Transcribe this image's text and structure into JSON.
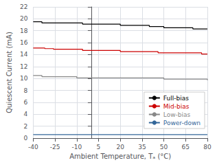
{
  "chart_data": {
    "type": "line",
    "line_style": "step",
    "xlabel": "Ambient Temperature, Tₐ (°C)",
    "ylabel": "Quiescent Current (mA)",
    "xlim": [
      -40,
      80
    ],
    "ylim": [
      0,
      22
    ],
    "xticks": [
      -40,
      -25,
      -10,
      5,
      20,
      35,
      50,
      65,
      80
    ],
    "yticks": [
      0,
      2,
      4,
      6,
      8,
      10,
      12,
      14,
      16,
      18,
      20,
      22
    ],
    "grid": true,
    "legend": "lower right",
    "x": [
      -40,
      -38,
      -36,
      -34,
      -32,
      -30,
      -28,
      -26,
      -24,
      -22,
      -20,
      -18,
      -16,
      -14,
      -12,
      -10,
      -8,
      -6,
      -4,
      -2,
      0,
      2,
      4,
      6,
      8,
      10,
      12,
      14,
      16,
      18,
      20,
      22,
      24,
      26,
      28,
      30,
      32,
      34,
      36,
      38,
      40,
      42,
      44,
      46,
      48,
      50,
      52,
      54,
      56,
      58,
      60,
      62,
      64,
      66,
      68,
      70,
      72,
      74,
      76,
      78,
      80
    ],
    "series": [
      {
        "name": "Full-bias",
        "color": "#000000",
        "values": [
          19.5,
          19.5,
          19.5,
          19.3,
          19.3,
          19.3,
          19.3,
          19.3,
          19.3,
          19.3,
          19.3,
          19.3,
          19.3,
          19.3,
          19.3,
          19.3,
          19.3,
          19.1,
          19.1,
          19.1,
          19.1,
          19.1,
          19.1,
          19.1,
          19.1,
          19.1,
          19.1,
          19.1,
          19.1,
          19.1,
          18.9,
          18.9,
          18.9,
          18.9,
          18.9,
          18.9,
          18.9,
          18.9,
          18.9,
          18.9,
          18.7,
          18.7,
          18.7,
          18.7,
          18.7,
          18.5,
          18.5,
          18.5,
          18.5,
          18.5,
          18.5,
          18.5,
          18.5,
          18.5,
          18.5,
          18.3,
          18.3,
          18.3,
          18.3,
          18.3,
          18.3
        ]
      },
      {
        "name": "Mid-bias",
        "color": "#cc0000",
        "values": [
          15.1,
          15.1,
          15.1,
          15.1,
          15.0,
          15.0,
          15.0,
          14.9,
          14.9,
          14.9,
          14.9,
          14.9,
          14.9,
          14.9,
          14.9,
          14.9,
          14.9,
          14.7,
          14.7,
          14.7,
          14.7,
          14.7,
          14.7,
          14.7,
          14.7,
          14.7,
          14.7,
          14.7,
          14.7,
          14.7,
          14.5,
          14.5,
          14.5,
          14.5,
          14.5,
          14.5,
          14.5,
          14.5,
          14.5,
          14.5,
          14.5,
          14.5,
          14.5,
          14.3,
          14.3,
          14.3,
          14.3,
          14.3,
          14.3,
          14.3,
          14.3,
          14.3,
          14.3,
          14.3,
          14.3,
          14.3,
          14.3,
          14.3,
          14.1,
          14.1,
          14.1
        ]
      },
      {
        "name": "Low-bias",
        "color": "#888888",
        "values": [
          10.5,
          10.5,
          10.5,
          10.3,
          10.3,
          10.3,
          10.3,
          10.3,
          10.3,
          10.3,
          10.3,
          10.3,
          10.3,
          10.3,
          10.3,
          10.1,
          10.1,
          10.1,
          10.1,
          10.1,
          10.1,
          10.1,
          10.1,
          10.1,
          10.1,
          10.1,
          10.1,
          10.1,
          10.1,
          10.1,
          10.1,
          10.1,
          10.1,
          10.1,
          10.1,
          10.1,
          10.1,
          10.1,
          10.1,
          10.1,
          10.1,
          10.1,
          10.1,
          10.1,
          10.1,
          9.9,
          9.9,
          9.9,
          9.9,
          9.9,
          9.9,
          9.9,
          9.9,
          9.9,
          9.9,
          9.9,
          9.9,
          9.9,
          9.9,
          9.9,
          9.7
        ]
      },
      {
        "name": "Power-down",
        "color": "#336699",
        "values": [
          0.6,
          0.6,
          0.6,
          0.6,
          0.6,
          0.6,
          0.6,
          0.6,
          0.6,
          0.6,
          0.6,
          0.6,
          0.6,
          0.6,
          0.6,
          0.6,
          0.6,
          0.6,
          0.6,
          0.6,
          0.6,
          0.6,
          0.6,
          0.6,
          0.6,
          0.6,
          0.6,
          0.6,
          0.6,
          0.6,
          0.6,
          0.6,
          0.6,
          0.6,
          0.6,
          0.6,
          0.6,
          0.6,
          0.6,
          0.6,
          0.6,
          0.6,
          0.6,
          0.6,
          0.6,
          0.6,
          0.6,
          0.6,
          0.6,
          0.6,
          0.6,
          0.6,
          0.6,
          0.6,
          0.6,
          0.6,
          0.6,
          0.6,
          0.6,
          0.6,
          0.6
        ]
      }
    ]
  }
}
